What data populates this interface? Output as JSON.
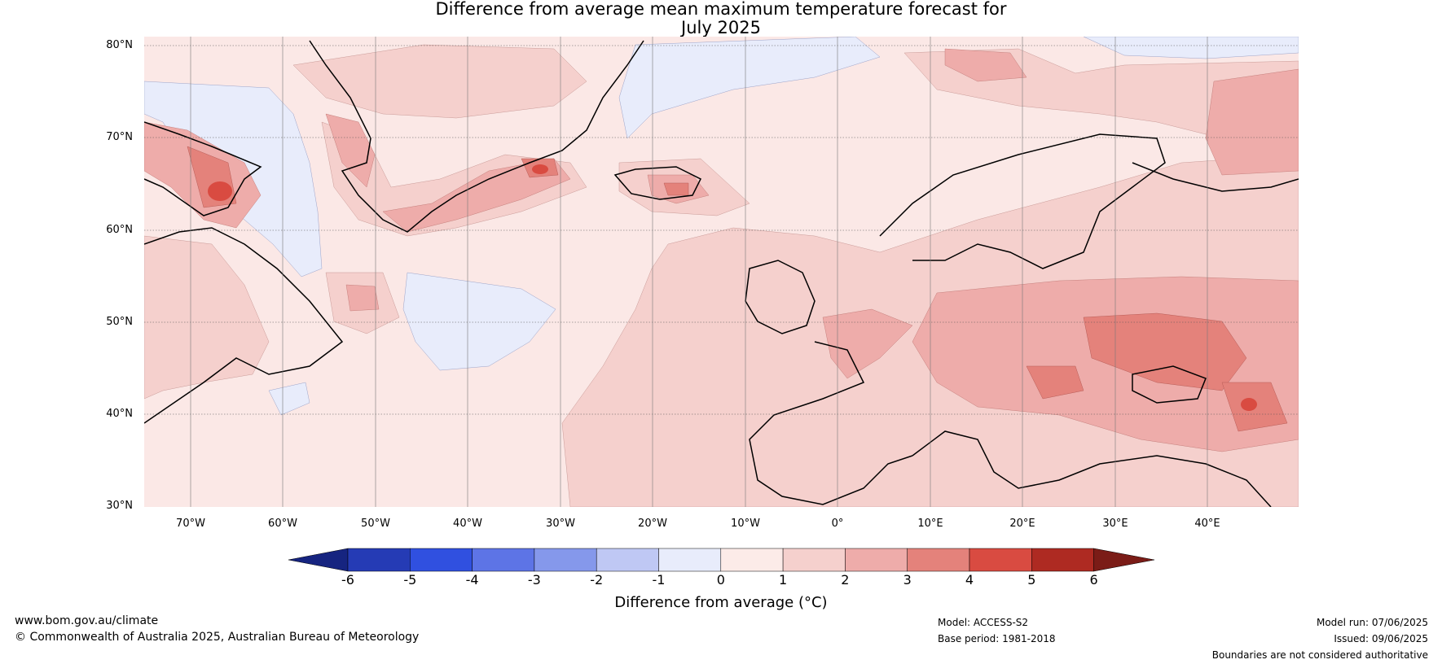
{
  "title": {
    "line1": "Difference from average mean maximum temperature forecast for",
    "line2": "July 2025"
  },
  "map": {
    "latitude_labels": [
      "80°N",
      "70°N",
      "60°N",
      "50°N",
      "40°N",
      "30°N"
    ],
    "longitude_labels": [
      "70°W",
      "60°W",
      "50°W",
      "40°W",
      "30°W",
      "20°W",
      "10°W",
      "0°",
      "10°E",
      "20°E",
      "30°E",
      "40°E"
    ],
    "background_anomaly_color": "#fbe8e6"
  },
  "colorbar": {
    "label": "Difference from average (°C)",
    "ticks": [
      "-6",
      "-5",
      "-4",
      "-3",
      "-2",
      "-1",
      "0",
      "1",
      "2",
      "3",
      "4",
      "5",
      "6"
    ],
    "colors": [
      "#162480",
      "#253bb5",
      "#3050e0",
      "#5d74e6",
      "#8598eb",
      "#bfc8f4",
      "#e8ecfb",
      "#fcebe8",
      "#f5d0cd",
      "#eeacaa",
      "#e4827b",
      "#d94b41",
      "#ae2a22",
      "#7b1c17"
    ]
  },
  "footer": {
    "website": "www.bom.gov.au/climate",
    "copyright": "© Commonwealth of Australia 2025, Australian Bureau of Meteorology",
    "model": "Model: ACCESS-S2",
    "base_period": "Base period: 1981-2018",
    "model_run": "Model run: 07/06/2025",
    "issued": "Issued: 09/06/2025",
    "disclaimer": "Boundaries are not considered authoritative"
  }
}
